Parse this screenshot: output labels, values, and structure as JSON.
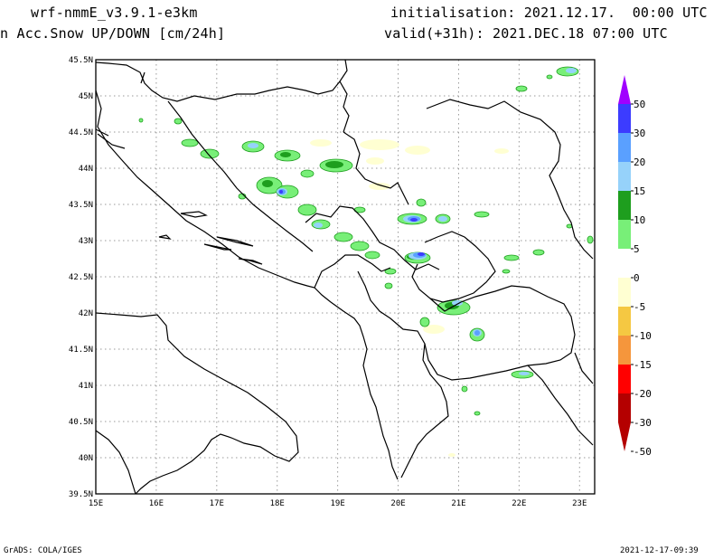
{
  "header": {
    "model": "wrf-nmmE_v3.9.1-e3km",
    "field": "n Acc.Snow UP/DOWN [cm/24h]",
    "initialisation": "initialisation: 2021.12.17.  00:00 UTC",
    "valid": "valid(+31h): 2021.DEC.18 07:00 UTC"
  },
  "footer": {
    "left": "GrADS: COLA/IGES",
    "right": "2021-12-17-09:39"
  },
  "map": {
    "lon_range": [
      15,
      23.25
    ],
    "lat_range": [
      39.5,
      45.5
    ],
    "lon_ticks": [
      "15E",
      "16E",
      "17E",
      "18E",
      "19E",
      "20E",
      "21E",
      "22E",
      "23E"
    ],
    "lat_ticks": [
      "45.5N",
      "45N",
      "44.5N",
      "44N",
      "43.5N",
      "43N",
      "42.5N",
      "42N",
      "41.5N",
      "41N",
      "40.5N",
      "40N",
      "39.5N"
    ],
    "grid": true
  },
  "colorbar": {
    "labels": [
      "50",
      "30",
      "20",
      "15",
      "10",
      "5",
      "0",
      "-5",
      "-10",
      "-15",
      "-20",
      "-30",
      "-50"
    ],
    "colors": [
      "#a000ff",
      "#3c3cff",
      "#5aa0ff",
      "#96d2fa",
      "#1e9e1e",
      "#78ef78",
      "#ffffff",
      "#ffffd2",
      "#f5c842",
      "#f5963c",
      "#ff0000",
      "#b40000"
    ]
  }
}
